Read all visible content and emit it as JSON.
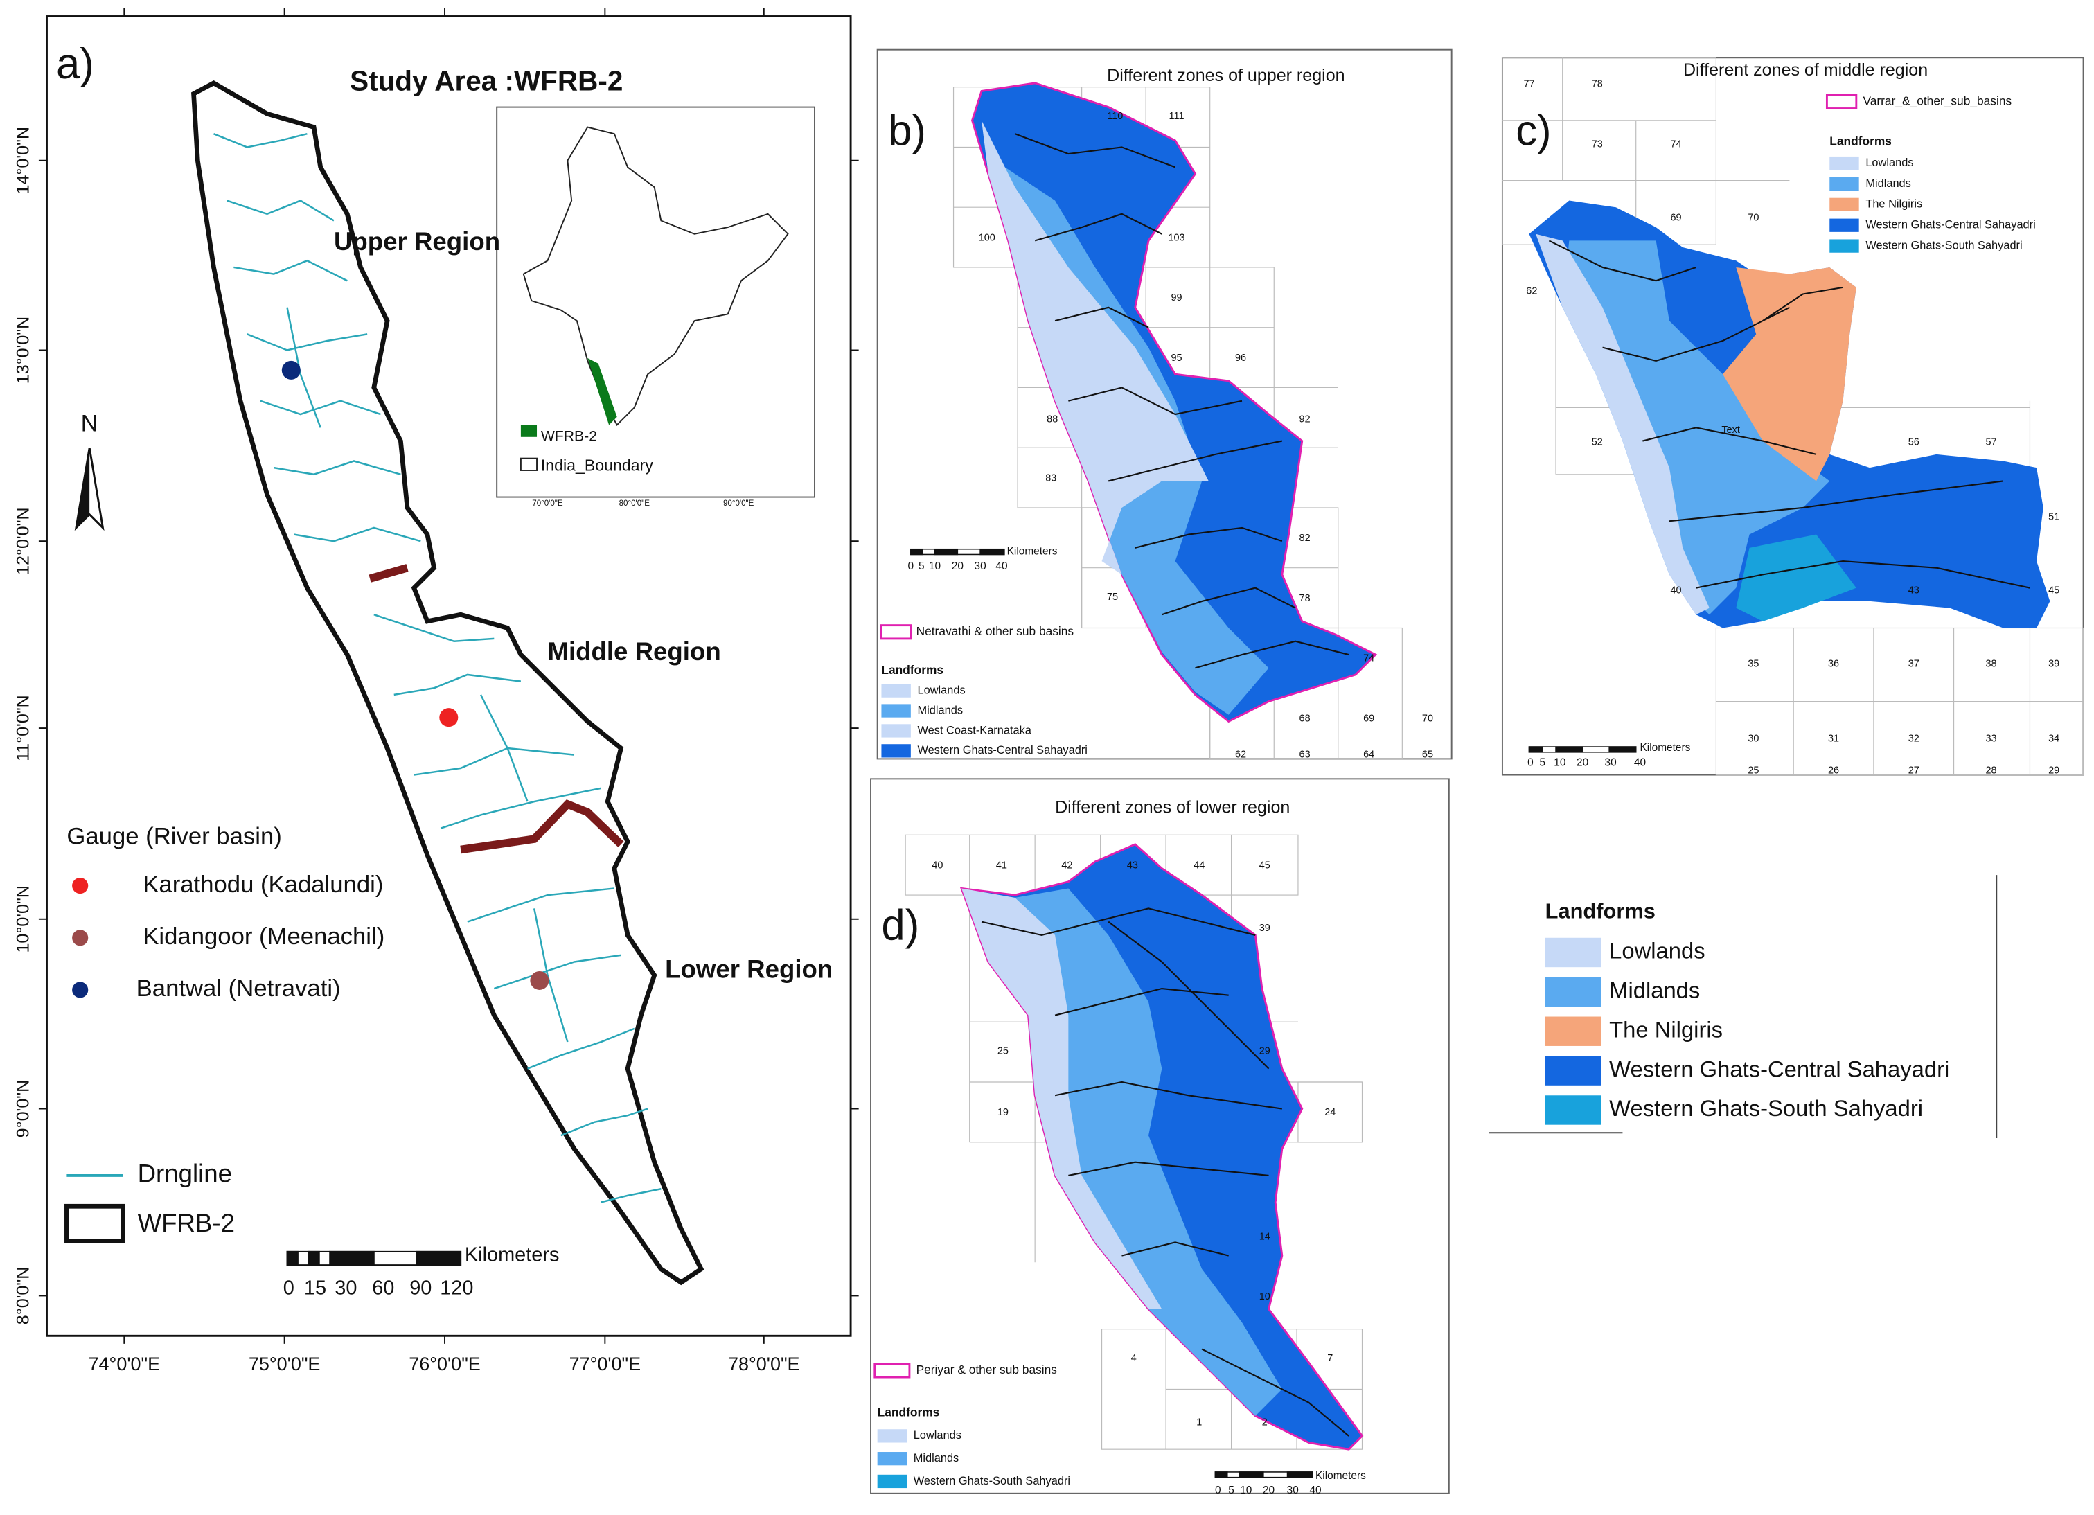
{
  "panel_a": {
    "label": "a)",
    "title": "Study Area :WFRB-2",
    "regions": [
      "Upper Region",
      "Middle Region",
      "Lower Region"
    ],
    "north": "N",
    "lat_ticks": [
      "14°0'0\"N",
      "13°0'0\"N",
      "12°0'0\"N",
      "11°0'0\"N",
      "10°0'0\"N",
      "9°0'0\"N",
      "8°0'0\"N"
    ],
    "lon_ticks": [
      "74°0'0\"E",
      "75°0'0\"E",
      "76°0'0\"E",
      "77°0'0\"E",
      "78°0'0\"E"
    ],
    "legend": {
      "title": "Gauge (River basin)",
      "gauges": [
        "Karathodu (Kadalundi)",
        "Kidangoor (Meenachil)",
        "Bantwal (Netravati)"
      ],
      "line": "Drngline",
      "boundary": "WFRB-2"
    },
    "scale": {
      "unit": "Kilometers",
      "labels": [
        "0",
        "15",
        "30",
        "60",
        "90",
        "120"
      ]
    },
    "inset": {
      "legend": [
        "WFRB-2",
        "India_Boundary"
      ],
      "lon_ticks": [
        "70°0'0\"E",
        "80°0'0\"E",
        "90°0'0\"E"
      ]
    }
  },
  "panel_b": {
    "label": "b)",
    "title": "Different zones of upper region",
    "grid": [
      "110",
      "111",
      "100",
      "103",
      "99",
      "95",
      "96",
      "92",
      "88",
      "83",
      "82",
      "75",
      "78",
      "74",
      "68",
      "69",
      "70",
      "62",
      "63",
      "64",
      "65"
    ],
    "scale": {
      "unit": "Kilometers",
      "labels": [
        "0",
        "5",
        "10",
        "20",
        "30",
        "40"
      ]
    },
    "boundary": "Netravathi & other sub basins",
    "legend_title": "Landforms",
    "legend": [
      "Lowlands",
      "Midlands",
      "West Coast-Karnataka",
      "Western Ghats-Central Sahayadri"
    ]
  },
  "panel_c": {
    "label": "c)",
    "title": "Different zones of middle region",
    "grid": [
      "77",
      "78",
      "73",
      "74",
      "69",
      "70",
      "62",
      "52",
      "56",
      "57",
      "51",
      "40",
      "43",
      "45",
      "35",
      "36",
      "37",
      "38",
      "39",
      "30",
      "31",
      "32",
      "33",
      "34",
      "25",
      "26",
      "27",
      "28",
      "29",
      "Text"
    ],
    "scale": {
      "unit": "Kilometers",
      "labels": [
        "0",
        "5",
        "10",
        "20",
        "30",
        "40"
      ]
    },
    "boundary": "Varrar_&_other_sub_basins",
    "legend_title": "Landforms",
    "legend": [
      "Lowlands",
      "Midlands",
      "The Nilgiris",
      "Western Ghats-Central Sahayadri",
      "Western Ghats-South Sahyadri"
    ]
  },
  "panel_d": {
    "label": "d)",
    "title": "Different zones of lower region",
    "grid": [
      "40",
      "41",
      "42",
      "43",
      "44",
      "45",
      "39",
      "25",
      "29",
      "19",
      "24",
      "14",
      "10",
      "4",
      "7",
      "1",
      "2"
    ],
    "scale": {
      "unit": "Kilometers",
      "labels": [
        "0",
        "5",
        "10",
        "20",
        "30",
        "40"
      ]
    },
    "boundary": "Periyar & other sub basins",
    "legend_title": "Landforms",
    "legend": [
      "Lowlands",
      "Midlands",
      "Western Ghats-South Sahyadri"
    ]
  },
  "landforms_legend": {
    "title": "Landforms",
    "items": [
      "Lowlands",
      "Midlands",
      "The Nilgiris",
      "Western Ghats-Central Sahayadri",
      "Western Ghats-South Sahyadri"
    ]
  }
}
